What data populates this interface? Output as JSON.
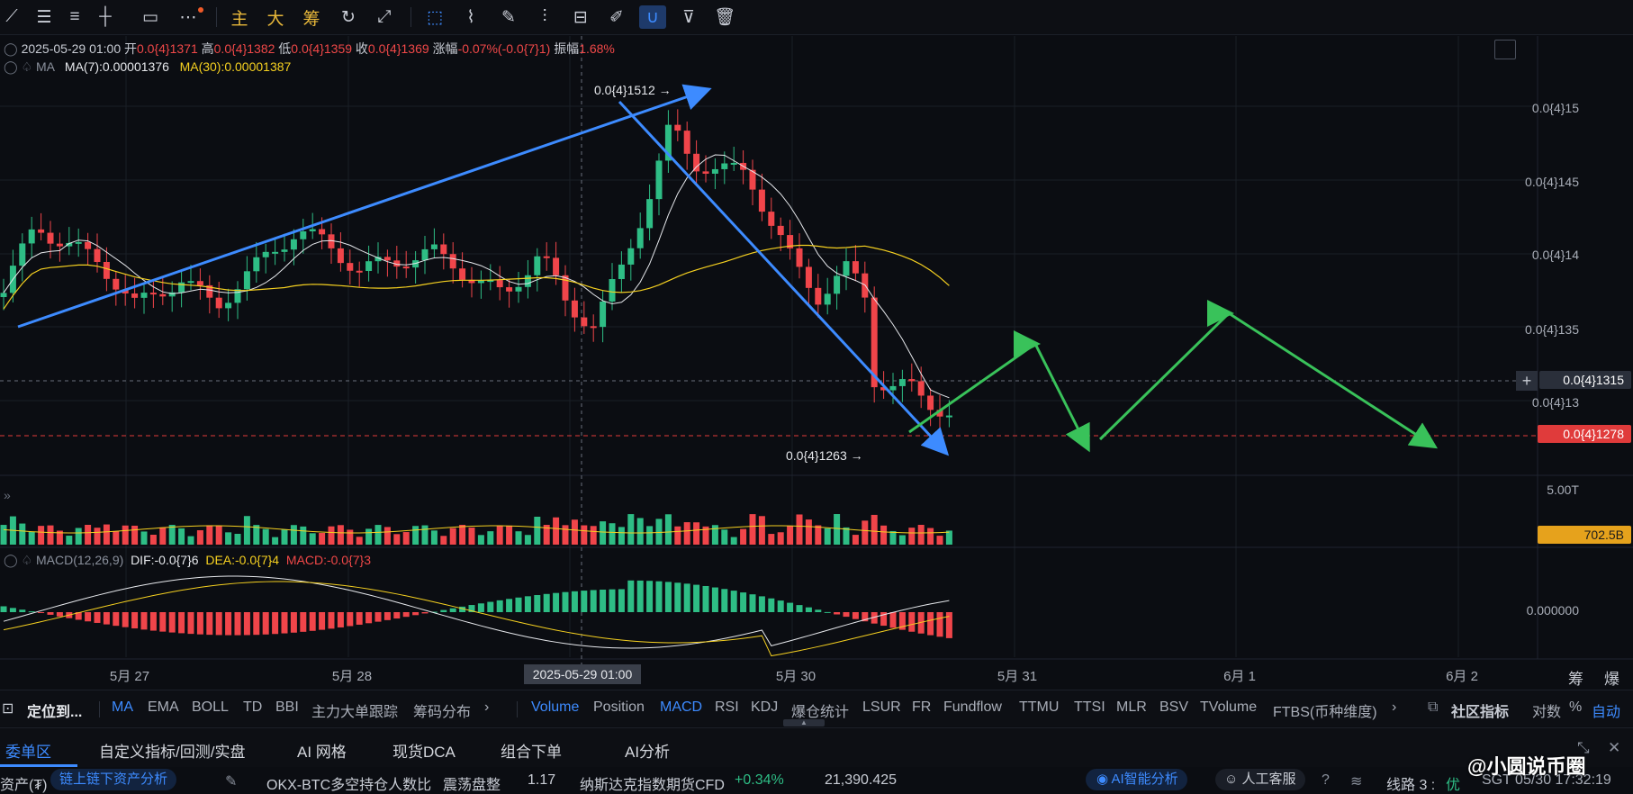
{
  "toolbar": {
    "tools": [
      "line-tool-icon",
      "horizontal-lines-icon",
      "parallel-lines-icon",
      "horizontal-ray-icon",
      "rectangle-icon",
      "more-icon"
    ],
    "chips": [
      "主",
      "大",
      "筹"
    ],
    "tools2": [
      "replay-icon",
      "measure-tool-icon",
      "crosshair-off-icon",
      "select-icon",
      "ruler-icon",
      "pen-icon",
      "candle-pattern-icon",
      "lock-icon",
      "edit-icon",
      "magnet-icon",
      "filter-icon",
      "trash-icon"
    ]
  },
  "ohlc": {
    "date": "2025-05-29 01:00",
    "open_label": "开",
    "open": "0.0{4}1371",
    "high_label": "高",
    "high": "0.0{4}1382",
    "low_label": "低",
    "low": "0.0{4}1359",
    "close_label": "收",
    "close": "0.0{4}1369",
    "change_label": "涨幅",
    "change": "-0.07%(-0.0{7}1)",
    "amp_label": "振幅",
    "amp": "1.68%"
  },
  "ma": {
    "name": "MA",
    "ma7": "MA(7):0.00001376",
    "ma30": "MA(30):0.00001387"
  },
  "macd": {
    "name": "MACD(12,26,9)",
    "dif": "DIF:-0.0{7}6",
    "dea": "DEA:-0.0{7}4",
    "macd": "MACD:-0.0{7}3"
  },
  "annotations": {
    "high_mark": "0.0{4}1512 →",
    "low_mark": "0.0{4}1263 →"
  },
  "price_axis": [
    "0.0{4}15",
    "0.0{4}145",
    "0.0{4}14",
    "0.0{4}135",
    "0.0{4}13"
  ],
  "crosshair_price": "0.0{4}1315",
  "last_price": "0.0{4}1278",
  "volume_axis": "5.00T",
  "volume_last": "702.5B",
  "macd_axis": "0.000000",
  "time_axis": [
    "5月 27",
    "5月 28",
    "5月 30",
    "5月 31",
    "6月 1",
    "6月 2"
  ],
  "crosshair_time": "2025-05-29 01:00",
  "corner": [
    "筹",
    "爆"
  ],
  "colors": {
    "up": "#2ebd85",
    "down": "#f0454a",
    "ma7": "#e6e8ec",
    "ma30": "#f5d020",
    "blue_arrow": "#3d8bff",
    "green_arrow": "#39c25a",
    "accent": "#3d8bff"
  },
  "indicator_bar": {
    "locate": "定位到...",
    "main": [
      "MA",
      "EMA",
      "BOLL",
      "TD",
      "BBI",
      "主力大单跟踪",
      "筹码分布"
    ],
    "sub": [
      "Volume",
      "Position",
      "MACD",
      "RSI",
      "KDJ",
      "爆仓统计",
      "LSUR",
      "FR",
      "Fundflow",
      "TTMU",
      "TTSI",
      "MLR",
      "BSV",
      "TVolume",
      "FTBS(币种维度)"
    ],
    "community": "社区指标",
    "log": "对数",
    "pct": "%",
    "auto": "自动"
  },
  "tabs": [
    "委单区",
    "自定义指标/回测/实盘",
    "AI 网格",
    "现货DCA",
    "组合下单",
    "AI分析"
  ],
  "status": {
    "assets": "资产(₮)",
    "chain": "链上链下资产分析",
    "ticker1": "OKX-BTC多空持仓人数比",
    "t1state": "震荡盘整",
    "t1val": "1.17",
    "ticker2": "纳斯达克指数期货CFD",
    "t2chg": "+0.34%",
    "t2val": "21,390.425",
    "ai": "AI智能分析",
    "service": "人工客服",
    "line": "线路 3 :",
    "line_q": "优",
    "clock": "SGT 05/30 17:32:19",
    "watermark": "@小圆说币圈"
  }
}
